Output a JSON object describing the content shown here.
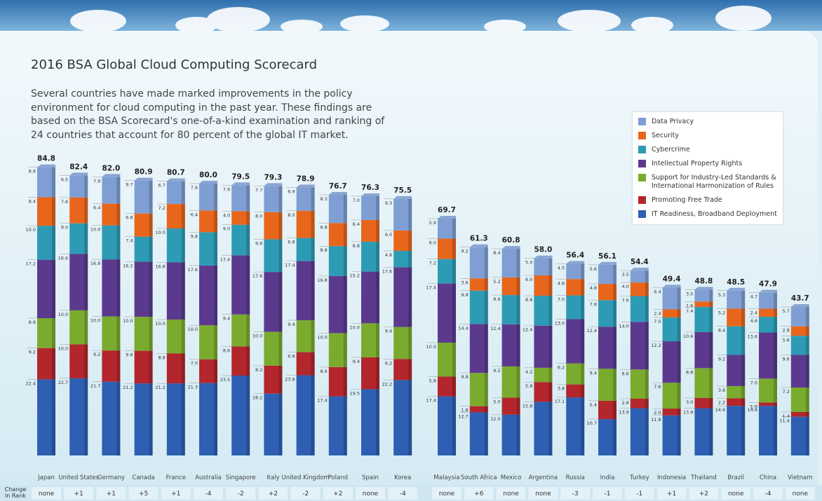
{
  "chart_data": {
    "type": "stacked-bar",
    "title": "2016 BSA Global Cloud Computing Scorecard",
    "description": "Several countries have made marked improvements in the policy environment for cloud computing in the past year. These findings are based on the BSA Scorecard's one-of-a-kind examination and ranking of 24 countries that account for 80 percent of the global IT market.",
    "categories": [
      "Japan",
      "United States",
      "Germany",
      "Canada",
      "France",
      "Australia",
      "Singapore",
      "Italy",
      "United Kingdom",
      "Poland",
      "Spain",
      "Korea",
      "Malaysia",
      "South Africa",
      "Mexico",
      "Argentina",
      "Russia",
      "India",
      "Turkey",
      "Indonesia",
      "Thailand",
      "Brazil",
      "China",
      "Vietnam"
    ],
    "series": [
      {
        "name": "IT Readiness, Broadband Deployment",
        "color": "#2f5fb3",
        "values": [
          22.4,
          22.7,
          21.7,
          21.2,
          21.2,
          21.3,
          23.5,
          18.2,
          23.6,
          17.4,
          19.5,
          22.2,
          17.4,
          12.7,
          12.0,
          15.8,
          17.1,
          10.7,
          13.9,
          11.8,
          13.9,
          14.6,
          14.6,
          11.4
        ],
        "value_labels": [
          "22.4",
          "22.7",
          "21.7",
          "21.2",
          "21.2",
          "21.3",
          "23.5",
          "18.2",
          "23.6",
          "17.4",
          "19.5",
          "22.2",
          "17.4",
          "12.7",
          "12.0",
          "15.8",
          "17.1",
          "10.7",
          "13.9",
          "11.8",
          "13.9",
          "14.6",
          "14.6",
          "11.4"
        ]
      },
      {
        "name": "Promoting Free Trade",
        "color": "#b3262c",
        "values": [
          9.2,
          10.0,
          9.2,
          9.6,
          8.8,
          7.0,
          8.6,
          8.2,
          6.8,
          8.6,
          9.4,
          6.2,
          5.8,
          1.8,
          5.0,
          5.8,
          3.8,
          5.4,
          2.8,
          2.0,
          3.0,
          2.2,
          1.0,
          1.4
        ],
        "value_labels": [
          "9.2",
          "10.0",
          "9.2",
          "9.6",
          "8.8",
          "7.0",
          "8.6",
          "8.2",
          "6.8",
          "8.6",
          "9.4",
          "6.2",
          "5.8",
          "1.8",
          "5.0",
          "5.8",
          "3.8",
          "5.4",
          "2.8",
          "2.0",
          "3.0",
          "2.2",
          "1.0",
          "1.4"
        ]
      },
      {
        "name": "Support for Industry-Led Standards & International Harmonization of Rules",
        "color": "#7aab2e",
        "values": [
          8.8,
          10.0,
          10.0,
          10.0,
          10.0,
          10.0,
          9.4,
          10.0,
          9.4,
          10.0,
          10.0,
          9.4,
          10.0,
          9.8,
          9.2,
          4.2,
          6.2,
          9.4,
          8.6,
          7.6,
          8.8,
          3.6,
          7.0,
          7.2
        ],
        "value_labels": [
          "8.8",
          "10.0",
          "10.0",
          "10.0",
          "10.0",
          "10.0",
          "9.4",
          "10.0",
          "9.4",
          "10.0",
          "10.0",
          "9.4",
          "10.0",
          "9.8",
          "9.2",
          "4.2",
          "6.2",
          "9.4",
          "8.6",
          "7.6",
          "8.8",
          "3.6",
          "7.0",
          "7.2"
        ]
      },
      {
        "name": "Intellectual Property Rights",
        "color": "#5b3a8e",
        "values": [
          17.2,
          16.6,
          16.8,
          16.2,
          16.8,
          17.6,
          17.4,
          17.6,
          17.4,
          16.8,
          15.2,
          17.6,
          17.4,
          14.4,
          12.4,
          12.4,
          13.0,
          12.4,
          14.0,
          12.2,
          10.6,
          9.2,
          13.6,
          9.6
        ],
        "value_labels": [
          "17.2",
          "16.6",
          "16.8",
          "16.2",
          "16.8",
          "17.6",
          "17.4",
          "17.6",
          "17.4",
          "16.8",
          "15.2",
          "17.6",
          "17.4",
          "14.4",
          "12.4",
          "12.4",
          "13.0",
          "12.4",
          "14.0",
          "12.2",
          "10.6",
          "9.2",
          "13.6",
          "9.6"
        ]
      },
      {
        "name": "Cybercrime",
        "color": "#2e9bb5",
        "values": [
          10.0,
          9.0,
          10.0,
          7.4,
          10.0,
          9.8,
          9.0,
          9.6,
          6.8,
          8.8,
          8.8,
          4.8,
          7.2,
          9.8,
          8.6,
          8.8,
          7.0,
          7.8,
          7.6,
          7.0,
          7.4,
          8.4,
          4.6,
          5.6
        ],
        "value_labels": [
          "10.0",
          "9.0",
          "10.0",
          "7.4",
          "10.0",
          "9.8",
          "9.0",
          "9.6",
          "6.8",
          "8.8",
          "8.8",
          "4.8",
          "7.2",
          "9.8",
          "8.6",
          "8.8",
          "7.0",
          "7.8",
          "7.6",
          "7.0",
          "7.4",
          "8.4",
          "4.6",
          "5.6"
        ]
      },
      {
        "name": "Security",
        "color": "#e8661c",
        "values": [
          8.4,
          7.6,
          6.4,
          6.8,
          7.2,
          6.4,
          4.0,
          8.0,
          8.0,
          6.8,
          6.4,
          6.0,
          6.0,
          3.6,
          5.2,
          6.0,
          4.8,
          4.8,
          4.0,
          2.4,
          1.6,
          5.2,
          2.4,
          2.8
        ],
        "value_labels": [
          "8.4",
          "7.6",
          "6.4",
          "6.8",
          "7.2",
          "6.4",
          "4.0",
          "8.0",
          "8.0",
          "6.8",
          "6.4",
          "6.0",
          "6.0",
          "3.6",
          "5.2",
          "6.0",
          "4.8",
          "4.8",
          "4.0",
          "2.4",
          "1.6",
          "5.2",
          "2.4",
          "2.8"
        ]
      },
      {
        "name": "Data Privacy",
        "color": "#7f9fd4",
        "values": [
          8.8,
          6.5,
          7.9,
          9.7,
          6.7,
          7.9,
          7.6,
          7.7,
          6.9,
          8.3,
          7.0,
          9.3,
          5.9,
          9.2,
          8.4,
          5.0,
          4.5,
          5.6,
          3.5,
          6.4,
          3.5,
          5.3,
          4.7,
          5.7
        ],
        "value_labels": [
          "8.8",
          "6.5",
          "7.9",
          "9.7",
          "6.7",
          "7.9",
          "7.6",
          "7.7",
          "6.9",
          "8.3",
          "7.0",
          "9.3",
          "5.9",
          "9.2",
          "8.4",
          "5.0",
          "4.5",
          "5.6",
          "3.5",
          "6.4",
          "3.5",
          "5.3",
          "4.7",
          "5.7"
        ]
      }
    ],
    "totals": [
      84.8,
      82.4,
      82.0,
      80.9,
      80.7,
      80.0,
      79.5,
      79.3,
      78.9,
      76.7,
      76.3,
      75.5,
      69.7,
      61.3,
      60.8,
      58.0,
      56.4,
      56.1,
      54.4,
      49.4,
      48.8,
      48.5,
      47.9,
      43.7
    ],
    "total_labels": [
      "84.8",
      "82.4",
      "82.0",
      "80.9",
      "80.7",
      "80.0",
      "79.5",
      "79.3",
      "78.9",
      "76.7",
      "76.3",
      "75.5",
      "69.7",
      "61.3",
      "60.8",
      "58.0",
      "56.4",
      "56.1",
      "54.4",
      "49.4",
      "48.8",
      "48.5",
      "47.9",
      "43.7"
    ],
    "change_label": "Change in Rank",
    "rank_change": [
      "none",
      "+1",
      "+1",
      "+5",
      "+1",
      "-4",
      "-2",
      "+2",
      "-2",
      "+2",
      "none",
      "-4",
      "none",
      "+6",
      "none",
      "none",
      "-3",
      "-1",
      "-1",
      "+1",
      "+2",
      "none",
      "-4",
      "none"
    ]
  }
}
